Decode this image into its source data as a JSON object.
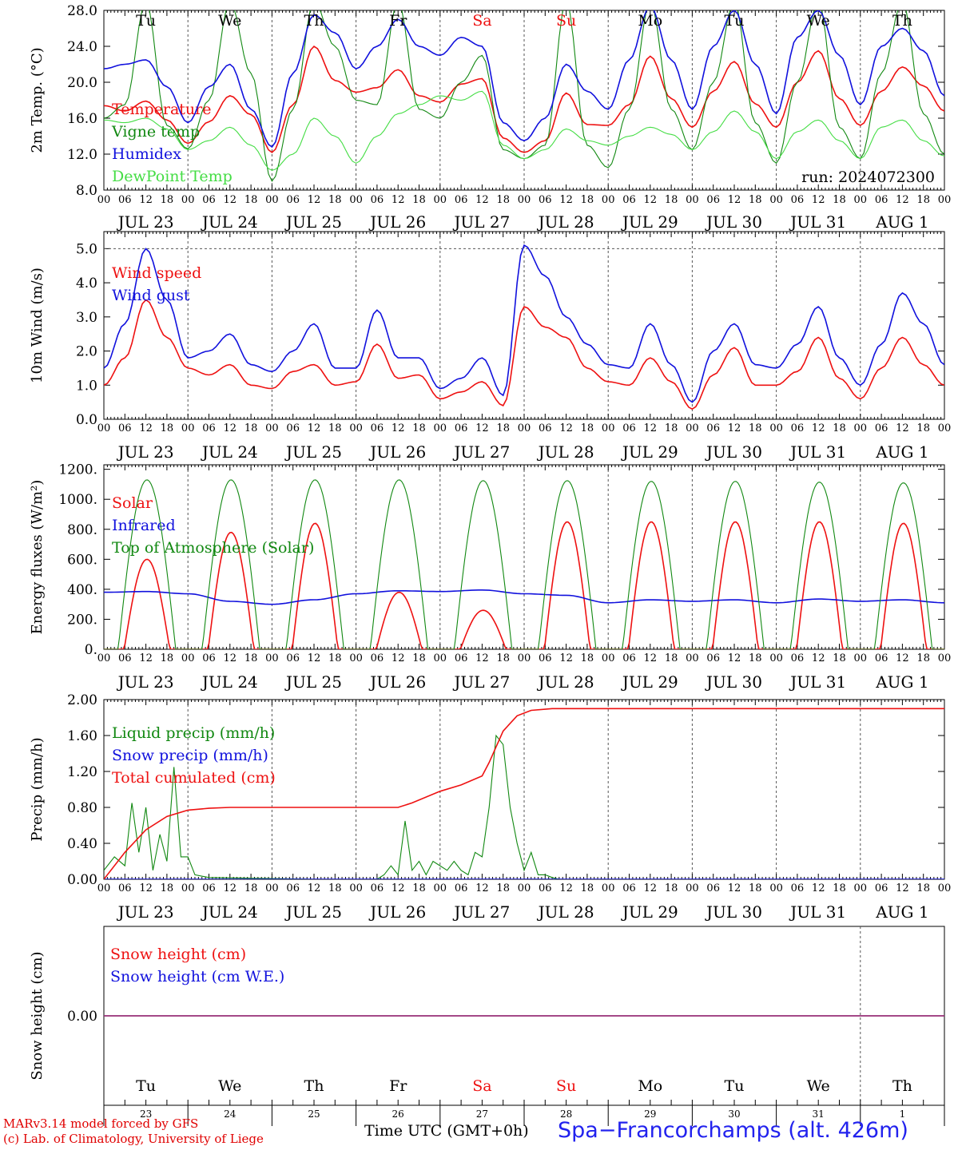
{
  "days": {
    "top_names": [
      "Tu",
      "We",
      "Th",
      "Fr",
      "Sa",
      "Su",
      "Mo",
      "Tu",
      "We",
      "Th"
    ],
    "weekend_flags": [
      false,
      false,
      false,
      false,
      true,
      true,
      false,
      false,
      false,
      false
    ],
    "date_labels": [
      "JUL 23",
      "JUL 24",
      "JUL 25",
      "JUL 26",
      "JUL 27",
      "JUL 28",
      "JUL 29",
      "JUL 30",
      "JUL 31",
      "AUG  1"
    ],
    "hour_ticks": [
      "00",
      "06",
      "12",
      "18"
    ],
    "bottom_day_numbers": [
      "23",
      "24",
      "25",
      "26",
      "27",
      "28",
      "29",
      "30",
      "31",
      "1"
    ]
  },
  "colors": {
    "red": "#ee1111",
    "green": "#118811",
    "blue": "#1111dd",
    "lightgreen": "#44dd44",
    "grid": "#555555",
    "weekend": "#ee1111"
  },
  "chart_data": [
    {
      "type": "line",
      "id": "temp",
      "ylabel": "2m Temp. (°C)",
      "ylim": [
        8,
        28
      ],
      "yticks": [
        "8.0",
        "12.0",
        "16.0",
        "20.0",
        "24.0",
        "28.0"
      ],
      "annotation": "run: 2024072300",
      "x_unit": "hours since 2024-07-23 00 UTC",
      "x": [
        0,
        6,
        12,
        18,
        24,
        30,
        36,
        42,
        48,
        54,
        60,
        66,
        72,
        78,
        84,
        90,
        96,
        102,
        108,
        114,
        120,
        126,
        132,
        138,
        144,
        150,
        156,
        162,
        168,
        174,
        180,
        186,
        192,
        198,
        204,
        210,
        216,
        222,
        228,
        234,
        240
      ],
      "series": [
        {
          "name": "Temperature",
          "color": "red",
          "values": [
            17.4,
            16.8,
            17.9,
            15.8,
            13.2,
            15.6,
            18.5,
            16.4,
            12.2,
            17.5,
            24.0,
            20.2,
            18.9,
            19.4,
            21.4,
            18.5,
            17.8,
            19.8,
            20.4,
            13.8,
            12.2,
            13.5,
            18.8,
            15.3,
            15.2,
            17.5,
            22.9,
            18.2,
            15.0,
            19.0,
            22.3,
            17.6,
            15.0,
            20.0,
            23.5,
            18.2,
            15.2,
            19.0,
            21.7,
            19.6,
            16.8
          ]
        },
        {
          "name": "Vigne temp",
          "color": "green",
          "values": [
            16.0,
            17.5,
            29.0,
            15.2,
            12.6,
            18.0,
            29.0,
            21.0,
            9.0,
            17.0,
            29.0,
            24.0,
            18.0,
            17.5,
            29.0,
            17.0,
            16.0,
            20.0,
            23.0,
            12.5,
            11.5,
            13.0,
            29.0,
            13.0,
            10.5,
            17.0,
            29.0,
            17.0,
            12.5,
            20.0,
            29.0,
            15.5,
            11.0,
            20.0,
            29.0,
            15.0,
            11.5,
            21.0,
            29.0,
            16.5,
            12.0
          ]
        },
        {
          "name": "Humidex",
          "color": "blue",
          "values": [
            21.5,
            22.0,
            22.5,
            19.5,
            15.5,
            19.5,
            22.0,
            17.0,
            12.8,
            21.0,
            27.5,
            25.5,
            21.5,
            24.0,
            27.0,
            24.0,
            23.0,
            25.0,
            24.0,
            15.5,
            13.5,
            16.0,
            22.0,
            19.0,
            17.0,
            22.5,
            28.5,
            22.5,
            17.0,
            24.0,
            28.0,
            22.0,
            16.5,
            25.0,
            28.0,
            23.0,
            17.5,
            24.0,
            26.0,
            23.5,
            18.5
          ]
        },
        {
          "name": "DewPoint Temp",
          "color": "lightgreen",
          "values": [
            15.8,
            15.5,
            16.0,
            14.8,
            12.5,
            13.5,
            15.0,
            13.0,
            10.2,
            12.0,
            16.0,
            14.0,
            11.0,
            14.0,
            16.5,
            17.5,
            18.5,
            18.0,
            19.0,
            13.0,
            11.5,
            12.5,
            14.8,
            13.5,
            13.0,
            14.0,
            15.0,
            14.2,
            12.5,
            14.5,
            16.8,
            14.5,
            11.5,
            14.5,
            15.8,
            13.5,
            11.5,
            15.0,
            15.8,
            13.5,
            11.8
          ]
        }
      ]
    },
    {
      "type": "line",
      "id": "wind",
      "ylabel": "10m Wind (m/s)",
      "ylim": [
        0,
        5.5
      ],
      "yticks": [
        "0.0",
        "1.0",
        "2.0",
        "3.0",
        "4.0",
        "5.0"
      ],
      "x_unit": "hours since 2024-07-23 00 UTC",
      "x": [
        0,
        6,
        12,
        18,
        24,
        30,
        36,
        42,
        48,
        54,
        60,
        66,
        72,
        78,
        84,
        90,
        96,
        102,
        108,
        114,
        120,
        126,
        132,
        138,
        144,
        150,
        156,
        162,
        168,
        174,
        180,
        186,
        192,
        198,
        204,
        210,
        216,
        222,
        228,
        234,
        240
      ],
      "series": [
        {
          "name": "Wind speed",
          "color": "red",
          "values": [
            1.0,
            1.8,
            3.5,
            2.4,
            1.5,
            1.3,
            1.6,
            1.0,
            0.9,
            1.4,
            1.6,
            1.0,
            1.1,
            2.2,
            1.2,
            1.3,
            0.6,
            0.8,
            1.1,
            0.4,
            3.3,
            2.7,
            2.4,
            1.5,
            1.1,
            1.0,
            1.8,
            1.1,
            0.3,
            1.3,
            2.1,
            1.0,
            1.0,
            1.4,
            2.4,
            1.2,
            0.6,
            1.5,
            2.4,
            1.6,
            1.0
          ]
        },
        {
          "name": "Wind gust",
          "color": "blue",
          "values": [
            1.5,
            2.8,
            5.0,
            3.5,
            1.8,
            2.0,
            2.5,
            1.6,
            1.4,
            2.0,
            2.8,
            1.5,
            1.5,
            3.2,
            1.8,
            1.8,
            0.9,
            1.2,
            1.8,
            0.7,
            5.1,
            4.2,
            3.0,
            2.2,
            1.6,
            1.5,
            2.8,
            1.6,
            0.5,
            2.0,
            2.8,
            1.6,
            1.5,
            2.2,
            3.3,
            1.8,
            1.0,
            2.2,
            3.7,
            2.8,
            1.6
          ]
        }
      ]
    },
    {
      "type": "line",
      "id": "energy",
      "ylabel": "Energy fluxes (W/m²)",
      "ylim": [
        0,
        1230
      ],
      "yticks": [
        "0.",
        "200.",
        "400.",
        "600.",
        "800.",
        "1000.",
        "1200."
      ],
      "x_unit": "hours since 2024-07-23 00 UTC",
      "day_peaks": {
        "solar": [
          600,
          780,
          840,
          380,
          260,
          850,
          850,
          850,
          850,
          840
        ],
        "toa": [
          1130,
          1130,
          1130,
          1130,
          1125,
          1125,
          1120,
          1120,
          1115,
          1110
        ]
      },
      "x": [
        0,
        12,
        24,
        36,
        48,
        60,
        72,
        84,
        96,
        108,
        120,
        132,
        144,
        156,
        168,
        180,
        192,
        204,
        216,
        228,
        240
      ],
      "series": [
        {
          "name": "Solar",
          "color": "red",
          "values": [
            0,
            600,
            0,
            780,
            0,
            840,
            0,
            380,
            0,
            260,
            0,
            850,
            0,
            850,
            0,
            850,
            0,
            850,
            0,
            840,
            0
          ]
        },
        {
          "name": "Infrared",
          "color": "blue",
          "values": [
            380,
            385,
            370,
            320,
            300,
            330,
            370,
            390,
            385,
            395,
            370,
            360,
            310,
            330,
            320,
            330,
            310,
            335,
            320,
            330,
            310
          ]
        },
        {
          "name": "Top of Atmosphere (Solar)",
          "color": "green",
          "values": [
            0,
            1130,
            0,
            1130,
            0,
            1130,
            0,
            1130,
            0,
            1125,
            0,
            1125,
            0,
            1120,
            0,
            1120,
            0,
            1115,
            0,
            1110,
            0
          ]
        }
      ]
    },
    {
      "type": "line",
      "id": "precip",
      "ylabel": "Precip (mm/h)",
      "ylim": [
        0,
        2.0
      ],
      "yticks": [
        "0.00",
        "0.40",
        "0.80",
        "1.20",
        "1.60",
        "2.00"
      ],
      "x_unit": "hours since 2024-07-23 00 UTC",
      "series": [
        {
          "name": "Liquid precip (mm/h)",
          "color": "green",
          "x": [
            0,
            3,
            6,
            8,
            10,
            12,
            14,
            16,
            18,
            20,
            22,
            24,
            26,
            30,
            60,
            78,
            80,
            82,
            84,
            86,
            88,
            90,
            92,
            94,
            96,
            98,
            100,
            102,
            104,
            106,
            108,
            110,
            112,
            114,
            116,
            118,
            120,
            122,
            124,
            126,
            128,
            130,
            132,
            134,
            138
          ],
          "values": [
            0.1,
            0.25,
            0.15,
            0.85,
            0.3,
            0.8,
            0.1,
            0.5,
            0.2,
            1.25,
            0.25,
            0.25,
            0.05,
            0.02,
            0.0,
            0.0,
            0.05,
            0.15,
            0.05,
            0.65,
            0.1,
            0.2,
            0.05,
            0.2,
            0.15,
            0.1,
            0.2,
            0.1,
            0.05,
            0.3,
            0.25,
            0.8,
            1.6,
            1.5,
            0.8,
            0.4,
            0.1,
            0.3,
            0.05,
            0.05,
            0.02,
            0.0,
            0.0,
            0.0,
            0.0
          ]
        },
        {
          "name": "Snow precip (mm/h)",
          "color": "blue",
          "x": [
            0,
            240
          ],
          "values": [
            0,
            0
          ]
        },
        {
          "name": "Total cumulated (cm)",
          "color": "red",
          "x": [
            0,
            6,
            12,
            18,
            24,
            30,
            36,
            48,
            72,
            84,
            88,
            96,
            102,
            108,
            110,
            114,
            118,
            122,
            128,
            240
          ],
          "values": [
            0,
            0.3,
            0.55,
            0.7,
            0.77,
            0.79,
            0.8,
            0.8,
            0.8,
            0.8,
            0.85,
            0.98,
            1.05,
            1.15,
            1.3,
            1.65,
            1.82,
            1.88,
            1.9,
            1.9
          ]
        }
      ]
    },
    {
      "type": "line",
      "id": "snow",
      "ylabel": "Snow height (cm)",
      "ylim": [
        -1,
        1
      ],
      "yticks": [
        "0.00"
      ],
      "x_unit": "hours since 2024-07-23 00 UTC",
      "x": [
        0,
        240
      ],
      "series": [
        {
          "name": "Snow height (cm)",
          "color": "red",
          "values": [
            0,
            0
          ]
        },
        {
          "name": "Snow height (cm W.E.)",
          "color": "blue",
          "values": [
            0,
            0
          ]
        }
      ]
    }
  ],
  "footer": {
    "model_line1": "MARv3.14 model forced by GFS",
    "model_line2": "(c) Lab. of Climatology, University of Liege",
    "time_label": "Time UTC (GMT+0h)",
    "station": "Spa−Francorchamps (alt. 426m)"
  }
}
